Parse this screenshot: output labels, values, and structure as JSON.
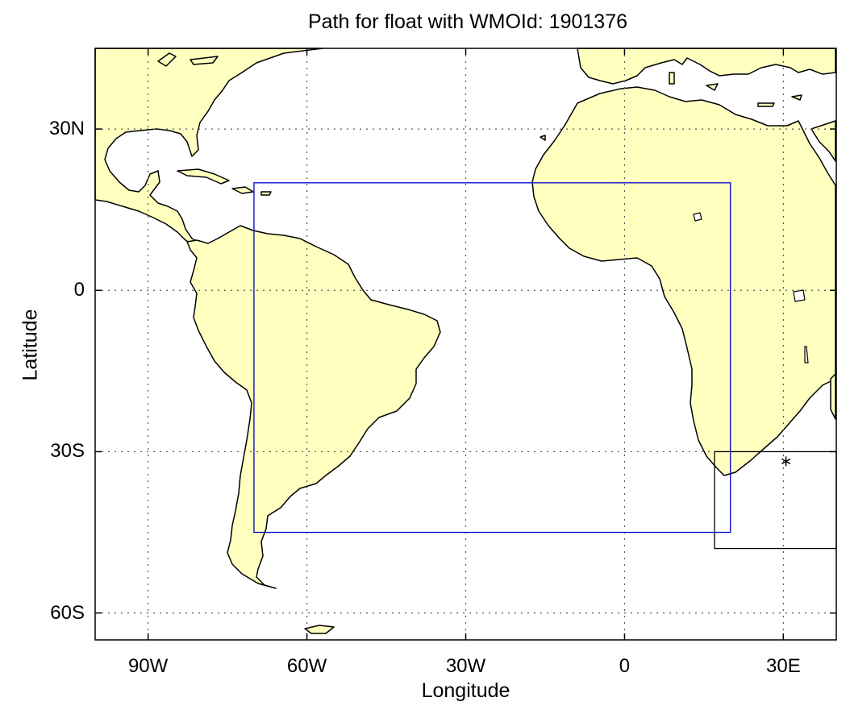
{
  "chart_data": {
    "type": "map",
    "title": "Path for float with WMOId: 1901376",
    "xlabel": "Longitude",
    "ylabel": "Latitude",
    "xlim": [
      -100,
      40
    ],
    "ylim": [
      -65,
      45
    ],
    "xticks": [
      {
        "value": -90,
        "label": "90W"
      },
      {
        "value": -60,
        "label": "60W"
      },
      {
        "value": -30,
        "label": "30W"
      },
      {
        "value": 0,
        "label": "0"
      },
      {
        "value": 30,
        "label": "30E"
      }
    ],
    "yticks": [
      {
        "value": 30,
        "label": "30N"
      },
      {
        "value": 0,
        "label": "0"
      },
      {
        "value": -30,
        "label": "30S"
      },
      {
        "value": -60,
        "label": "60S"
      }
    ],
    "grid": true,
    "land_color": "#ffffc0",
    "region_box": {
      "lon": [
        -70,
        20
      ],
      "lat": [
        -45,
        20
      ],
      "color": "#0000cc"
    },
    "inset_box": {
      "lon": [
        17,
        40
      ],
      "lat": [
        -48,
        -30
      ],
      "color": "#000000"
    },
    "float_positions": [
      {
        "lon": 30.5,
        "lat": -31.8,
        "marker": "asterisk"
      }
    ]
  }
}
